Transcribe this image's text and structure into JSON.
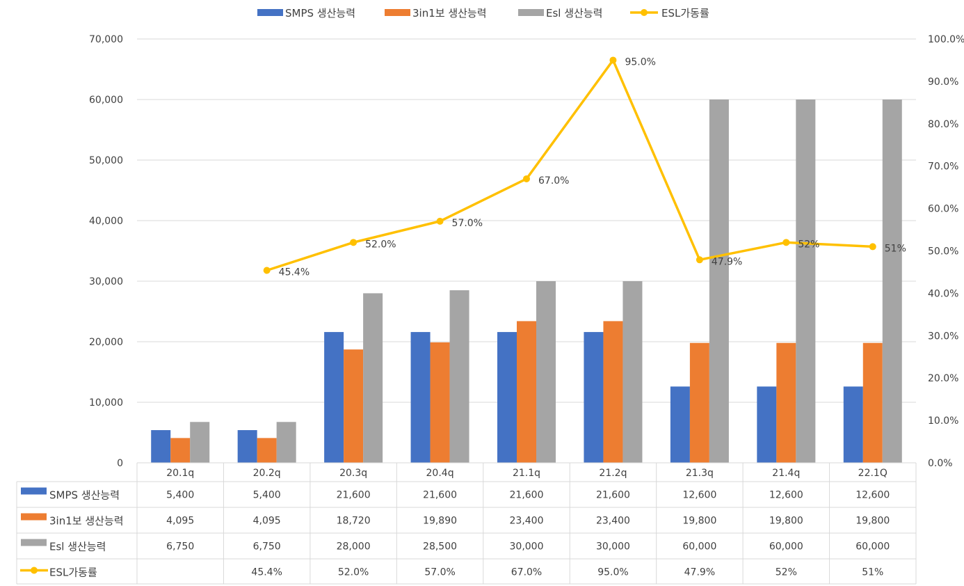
{
  "chart_data": {
    "type": "bar+line",
    "categories": [
      "20.1q",
      "20.2q",
      "20.3q",
      "20.4q",
      "21.1q",
      "21.2q",
      "21.3q",
      "21.4q",
      "22.1Q"
    ],
    "series": [
      {
        "name": "SMPS 생산능력",
        "kind": "bar",
        "axis": "left",
        "color": "#4472C4",
        "values": [
          5400,
          5400,
          21600,
          21600,
          21600,
          21600,
          12600,
          12600,
          12600
        ],
        "table_values": [
          "5,400",
          "5,400",
          "21,600",
          "21,600",
          "21,600",
          "21,600",
          "12,600",
          "12,600",
          "12,600"
        ]
      },
      {
        "name": "3in1보 생산능력",
        "kind": "bar",
        "axis": "left",
        "color": "#ED7D31",
        "values": [
          4095,
          4095,
          18720,
          19890,
          23400,
          23400,
          19800,
          19800,
          19800
        ],
        "table_values": [
          "4,095",
          "4,095",
          "18,720",
          "19,890",
          "23,400",
          "23,400",
          "19,800",
          "19,800",
          "19,800"
        ]
      },
      {
        "name": "Esl 생산능력",
        "kind": "bar",
        "axis": "left",
        "color": "#A5A5A5",
        "values": [
          6750,
          6750,
          28000,
          28500,
          30000,
          30000,
          60000,
          60000,
          60000
        ],
        "table_values": [
          "6,750",
          "6,750",
          "28,000",
          "28,500",
          "30,000",
          "30,000",
          "60,000",
          "60,000",
          "60,000"
        ]
      },
      {
        "name": "ESL가동률",
        "kind": "line",
        "axis": "right",
        "color": "#FFC000",
        "values": [
          null,
          45.4,
          52.0,
          57.0,
          67.0,
          95.0,
          47.9,
          52,
          51
        ],
        "labels": [
          "",
          "45.4%",
          "52.0%",
          "57.0%",
          "67.0%",
          "95.0%",
          "47.9%",
          "52%",
          "51%"
        ]
      }
    ],
    "legend": [
      "SMPS 생산능력",
      "3in1보 생산능력",
      "Esl 생산능력",
      "ESL가동률"
    ],
    "legend_position": "top",
    "y_left": {
      "range": [
        0,
        70000
      ],
      "ticks": [
        0,
        10000,
        20000,
        30000,
        40000,
        50000,
        60000,
        70000
      ],
      "tick_labels": [
        "0",
        "10,000",
        "20,000",
        "30,000",
        "40,000",
        "50,000",
        "60,000",
        "70,000"
      ]
    },
    "y_right": {
      "range": [
        0,
        100
      ],
      "ticks": [
        0,
        10,
        20,
        30,
        40,
        50,
        60,
        70,
        80,
        90,
        100
      ],
      "tick_labels": [
        "0.0%",
        "10.0%",
        "20.0%",
        "30.0%",
        "40.0%",
        "50.0%",
        "60.0%",
        "70.0%",
        "80.0%",
        "90.0%",
        "100.0%"
      ]
    },
    "grid": true,
    "data_table": true
  }
}
